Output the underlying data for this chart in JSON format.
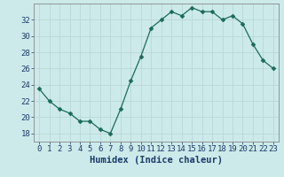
{
  "x": [
    0,
    1,
    2,
    3,
    4,
    5,
    6,
    7,
    8,
    9,
    10,
    11,
    12,
    13,
    14,
    15,
    16,
    17,
    18,
    19,
    20,
    21,
    22,
    23
  ],
  "y": [
    23.5,
    22.0,
    21.0,
    20.5,
    19.5,
    19.5,
    18.5,
    18.0,
    21.0,
    24.5,
    27.5,
    31.0,
    32.0,
    33.0,
    32.5,
    33.5,
    33.0,
    33.0,
    32.0,
    32.5,
    31.5,
    29.0,
    27.0,
    26.0
  ],
  "line_color": "#1a6b5a",
  "marker": "D",
  "marker_size": 2.5,
  "bg_color": "#cdeaea",
  "grid_color": "#b8d8d6",
  "axis_color": "#555555",
  "xlabel": "Humidex (Indice chaleur)",
  "ylim": [
    17.0,
    34.0
  ],
  "xlim": [
    -0.5,
    23.5
  ],
  "yticks": [
    18,
    20,
    22,
    24,
    26,
    28,
    30,
    32
  ],
  "xticks": [
    0,
    1,
    2,
    3,
    4,
    5,
    6,
    7,
    8,
    9,
    10,
    11,
    12,
    13,
    14,
    15,
    16,
    17,
    18,
    19,
    20,
    21,
    22,
    23
  ],
  "tick_fontsize": 6.5,
  "label_fontsize": 7.5
}
